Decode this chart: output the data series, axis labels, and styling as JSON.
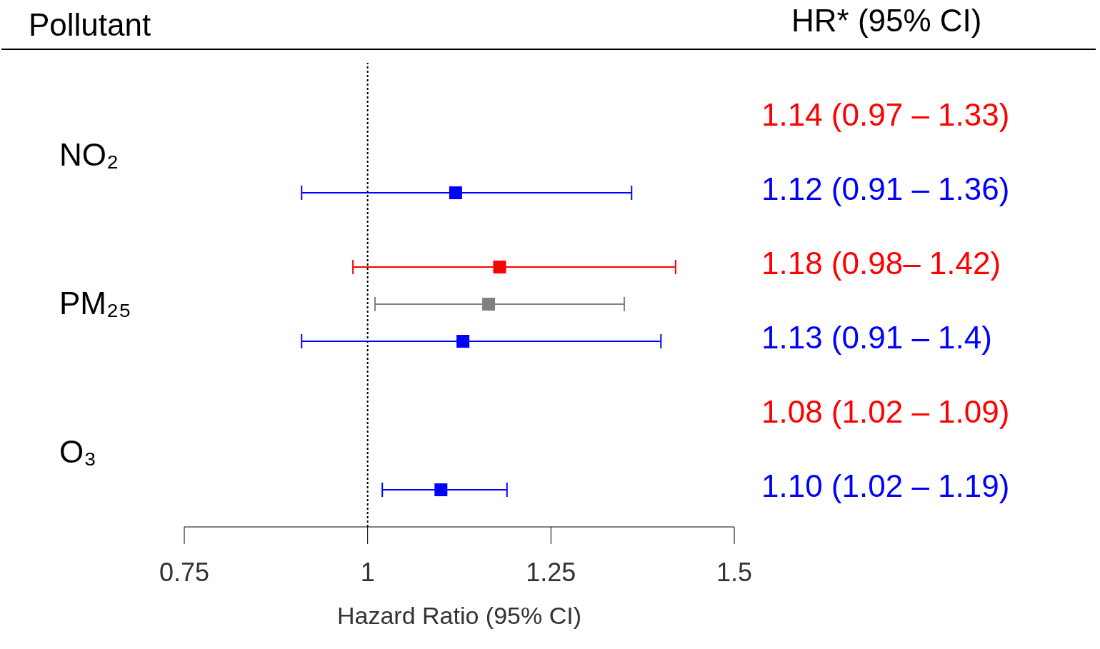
{
  "chart_data": [
    {
      "type": "scatter",
      "orientation": "horizontal",
      "marker": "square",
      "categories": [
        "NO₂",
        "PM₂₅",
        "O₃"
      ],
      "series": [
        {
          "color": "#ff0000",
          "values": [
            null,
            1.18,
            null
          ],
          "errors": [
            null,
            [
              0.98,
              1.42
            ],
            null
          ]
        },
        {
          "color": "#7f7f7f",
          "values": [
            null,
            1.165,
            null
          ],
          "errors": [
            null,
            [
              1.01,
              1.35
            ],
            null
          ]
        },
        {
          "color": "#0000ff",
          "values": [
            1.12,
            1.13,
            1.1
          ],
          "errors": [
            [
              0.91,
              1.36
            ],
            [
              0.91,
              1.4
            ],
            [
              1.02,
              1.19
            ]
          ]
        }
      ],
      "xlim": [
        0.75,
        1.5
      ],
      "xticks": [
        0.75,
        1,
        1.25,
        1.5
      ],
      "xlabel": "Hazard Ratio (95% CI)",
      "ref_lines": [
        {
          "axis": "x",
          "value": 1,
          "line_style": "dotted",
          "color": "#000000"
        }
      ],
      "annotations": [
        "Pollutant"
      ]
    },
    {
      "type": "other",
      "title": "HR* (95% CI)",
      "series": [
        {
          "name": "1.14 (0.97 – 1.33)",
          "color": "#ff0000"
        },
        {
          "name": "1.12 (0.91 – 1.36)",
          "color": "#0000ff"
        },
        {
          "name": "1.18 (0.98– 1.42)",
          "color": "#ff0000"
        },
        {
          "name": "1.13 (0.91 – 1.4)",
          "color": "#0000ff"
        },
        {
          "name": "1.08 (1.02 – 1.09)",
          "color": "#ff0000"
        },
        {
          "name": "1.10 (1.02 – 1.19)",
          "color": "#0000ff"
        }
      ]
    }
  ]
}
